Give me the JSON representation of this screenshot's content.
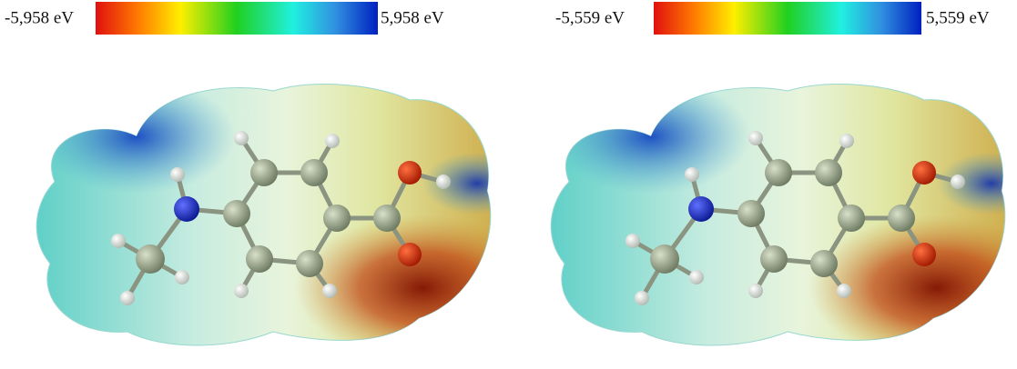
{
  "panels": [
    {
      "min_label": "-5,958 eV",
      "max_label": "5,958 eV"
    },
    {
      "min_label": "-5,559 eV",
      "max_label": "5,559 eV"
    }
  ]
}
